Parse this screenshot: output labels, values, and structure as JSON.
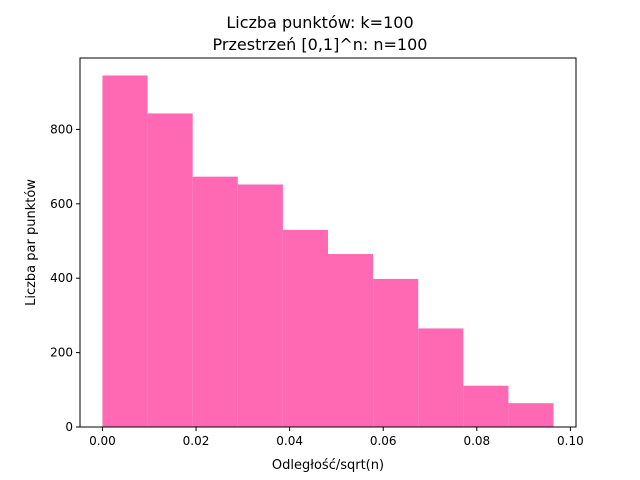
{
  "chart_data": {
    "type": "bar",
    "title_line1": "Liczba punktów: k=100",
    "title_line2": "Przestrzeń [0,1]^n: n=100",
    "xlabel": "Odległość/sqrt(n)",
    "ylabel": "Liczba par punktów",
    "bin_edges": [
      0.0,
      0.00964,
      0.01928,
      0.02892,
      0.03856,
      0.0482,
      0.05784,
      0.06748,
      0.07712,
      0.08676,
      0.0964
    ],
    "values": [
      945,
      843,
      673,
      652,
      530,
      465,
      398,
      265,
      111,
      64
    ],
    "xlim": [
      -0.0048,
      0.1012
    ],
    "ylim": [
      0,
      992
    ],
    "xticks": [
      0.0,
      0.02,
      0.04,
      0.06,
      0.08,
      0.1
    ],
    "xtick_labels": [
      "0.00",
      "0.02",
      "0.04",
      "0.06",
      "0.08",
      "0.10"
    ],
    "yticks": [
      0,
      200,
      400,
      600,
      800
    ],
    "ytick_labels": [
      "0",
      "200",
      "400",
      "600",
      "800"
    ],
    "bar_color": "#ff69b4",
    "grid": false
  }
}
